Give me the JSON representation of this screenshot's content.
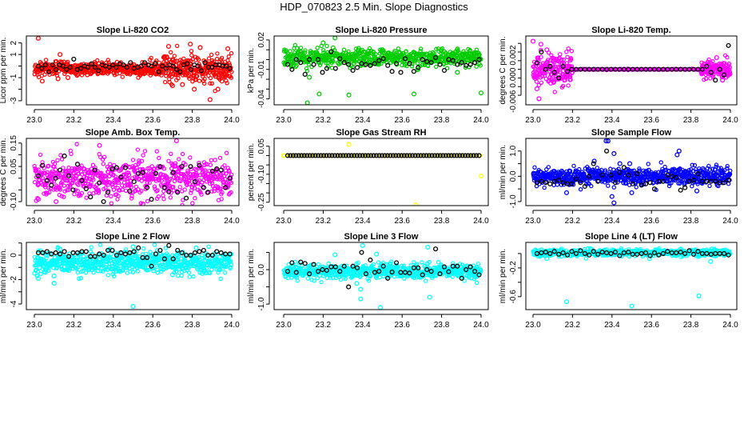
{
  "title": "HDP_070823  2.5 Min. Slope Diagnostics",
  "chart_data": [
    {
      "type": "scatter",
      "title": "Slope Li-820 CO2",
      "ylabel": "Licor ppm per min.",
      "color": "#ff0000",
      "xlim": [
        23.0,
        24.0
      ],
      "xticks": [
        "23.0",
        "23.2",
        "23.4",
        "23.6",
        "23.8",
        "24.0"
      ],
      "ylim": [
        -3.35,
        2.6
      ],
      "yticks": [
        2,
        1,
        0,
        -1,
        -2,
        -3
      ],
      "ytick_labels": [
        "2",
        "1",
        "",
        "-1",
        "",
        "-3"
      ],
      "black_series": [
        0.0,
        -0.2,
        0.1,
        -0.5,
        0.1,
        -0.3,
        0.1,
        0.0,
        -0.3,
        -0.1,
        0.6,
        -0.3,
        -0.2,
        0.0,
        -0.1,
        0.2,
        -0.1,
        -0.4,
        0.1,
        0.0,
        -0.1,
        0.1,
        -0.1,
        0.2,
        0.1,
        -0.1,
        0.3,
        -0.2,
        -0.1,
        0.0,
        0.3,
        0.1,
        0.0,
        0.2,
        -0.5,
        0.0,
        -0.2,
        0.1,
        0.0,
        -0.3,
        -0.5,
        0.1,
        0.2,
        -0.3,
        0.1,
        0.0,
        -0.4,
        0.3,
        -0.1,
        -0.1,
        0.1,
        0.1,
        0.0,
        0.0,
        -0.2
      ],
      "cloud": [
        {
          "from": 23.0,
          "to": 23.65,
          "mean": -0.25,
          "sd": 0.3,
          "n": 420
        },
        {
          "from": 23.65,
          "to": 24.0,
          "mean": -0.3,
          "sd": 0.6,
          "n": 260
        }
      ],
      "outliers": [
        [
          23.02,
          2.4
        ],
        [
          23.04,
          -1.3
        ],
        [
          23.12,
          -1.1
        ],
        [
          23.13,
          1.0
        ],
        [
          23.17,
          -1.0
        ],
        [
          23.68,
          1.7
        ],
        [
          23.79,
          1.9
        ],
        [
          23.84,
          1.6
        ],
        [
          23.89,
          -2.9
        ],
        [
          23.75,
          -1.6
        ],
        [
          23.7,
          -1.7
        ],
        [
          23.98,
          1.5
        ],
        [
          23.95,
          -1.3
        ],
        [
          23.81,
          -2.0
        ],
        [
          23.93,
          -2.0
        ]
      ]
    },
    {
      "type": "scatter",
      "title": "Slope Li-820 Pressure",
      "ylabel": "kPa per min.",
      "color": "#00cc00",
      "xlim": [
        23.0,
        24.0
      ],
      "xticks": [
        "23.0",
        "23.2",
        "23.4",
        "23.6",
        "23.8",
        "24.0"
      ],
      "ylim": [
        -0.046,
        0.024
      ],
      "yticks": [
        0.02,
        0.01,
        0.0,
        -0.01,
        -0.02,
        -0.03,
        -0.04
      ],
      "ytick_labels": [
        "0.02",
        "",
        "",
        "-0.01",
        "",
        "",
        "-0.04"
      ],
      "black_series": [
        -0.005,
        -0.01,
        0.0,
        -0.003,
        -0.015,
        0.0,
        -0.005,
        0.0,
        -0.013,
        -0.009,
        0.008,
        -0.009,
        0.001,
        -0.003,
        -0.005,
        -0.011,
        -0.008,
        -0.004,
        -0.005,
        -0.006,
        -0.004,
        -0.001,
        0.001,
        -0.006,
        -0.012,
        -0.004,
        -0.013,
        0.001,
        -0.004,
        -0.012,
        -0.008,
        0.0,
        -0.002,
        -0.003,
        0.002,
        -0.005,
        -0.011,
        0.0,
        -0.001,
        -0.005,
        -0.003,
        -0.006,
        -0.005,
        -0.003,
        0.0
      ],
      "cloud": [
        {
          "from": 23.0,
          "to": 24.0,
          "mean": 0.002,
          "sd": 0.0045,
          "n": 650
        }
      ],
      "outliers": [
        [
          23.12,
          -0.044
        ],
        [
          23.18,
          -0.035
        ],
        [
          23.33,
          -0.036
        ],
        [
          23.66,
          -0.035
        ],
        [
          24.0,
          -0.034
        ],
        [
          23.26,
          0.022
        ],
        [
          23.2,
          0.017
        ],
        [
          23.25,
          0.012
        ],
        [
          23.13,
          -0.018
        ],
        [
          23.88,
          -0.013
        ]
      ]
    },
    {
      "type": "scatter",
      "title": "Slope Li-820 Temp.",
      "ylabel": "degrees C per min.",
      "color": "#ff00ff",
      "xlim": [
        23.0,
        24.0
      ],
      "xticks": [
        "23.0",
        "23.2",
        "23.4",
        "23.6",
        "23.8",
        "24.0"
      ],
      "ylim": [
        -0.0082,
        0.0077
      ],
      "yticks": [
        0.006,
        0.004,
        0.002,
        0.0,
        -0.002,
        -0.004,
        -0.006
      ],
      "ytick_labels": [
        "",
        "",
        "0.002",
        "0.000",
        "",
        "",
        "-0.006"
      ],
      "black_series": [
        0.0015,
        0.004,
        0.0,
        0.0007,
        -0.0007,
        -0.002,
        0.0007,
        -0.0005,
        0.0,
        0.0,
        0.0,
        0.0,
        0.0,
        0.0,
        0.0,
        0.0,
        0.0,
        0.0,
        0.0,
        0.0,
        0.0,
        0.0,
        0.0,
        0.0,
        0.0,
        0.0,
        0.0,
        0.0,
        0.0,
        0.0,
        0.0,
        0.0,
        0.0,
        0.0,
        0.0,
        0.0,
        0.0,
        0.0,
        0.0,
        0.0007,
        -0.0007,
        -0.0025,
        0.0,
        -0.0013,
        0.0055
      ],
      "cloud": [
        {
          "from": 23.0,
          "to": 23.2,
          "mean": 0.0,
          "sd": 0.0018,
          "n": 180
        },
        {
          "from": 23.2,
          "to": 23.85,
          "mean": 0.0,
          "sd": 5e-05,
          "n": 160
        },
        {
          "from": 23.85,
          "to": 24.0,
          "mean": 0.0,
          "sd": 0.0011,
          "n": 140
        }
      ],
      "outliers": [
        [
          23.0,
          0.0065
        ],
        [
          23.03,
          -0.0068
        ],
        [
          23.02,
          -0.0045
        ],
        [
          23.04,
          0.0058
        ],
        [
          23.07,
          0.0045
        ],
        [
          23.09,
          -0.0032
        ],
        [
          23.93,
          0.0027
        ],
        [
          23.96,
          -0.0025
        ]
      ]
    },
    {
      "type": "scatter",
      "title": "Slope Amb. Box Temp.",
      "ylabel": "degrees C per min.",
      "color": "#ff00ff",
      "xlim": [
        23.0,
        24.0
      ],
      "xticks": [
        "23.0",
        "23.2",
        "23.4",
        "23.6",
        "23.8",
        "24.0"
      ],
      "ylim": [
        -0.117,
        0.17
      ],
      "yticks": [
        0.15,
        0.1,
        0.05,
        0.0,
        -0.05,
        -0.1
      ],
      "ytick_labels": [
        "0.15",
        "",
        "0.05",
        "",
        "",
        "-0.10"
      ],
      "black_series": [
        0.01,
        0.055,
        -0.01,
        -0.03,
        0.0,
        0.035,
        0.095,
        0.01,
        -0.05,
        0.06,
        -0.01,
        -0.045,
        -0.08,
        0.035,
        -0.02,
        -0.1,
        -0.06,
        0.04,
        0.045,
        0.005,
        0.045,
        -0.055,
        -0.015,
        0.02,
        0.025,
        -0.04,
        -0.09,
        0.02,
        0.05,
        -0.04,
        -0.058,
        0.025,
        -0.06,
        0.05,
        -0.085,
        0.05,
        -0.015,
        0.055,
        -0.04,
        -0.06,
        0.03,
        0.04,
        0.035,
        -0.04,
        0.0
      ],
      "cloud": [
        {
          "from": 23.0,
          "to": 24.0,
          "mean": 0.0,
          "sd": 0.042,
          "n": 650
        }
      ],
      "outliers": [
        [
          23.33,
          0.14
        ],
        [
          23.72,
          0.16
        ],
        [
          23.55,
          -0.11
        ],
        [
          23.02,
          -0.09
        ],
        [
          23.11,
          -0.1
        ]
      ]
    },
    {
      "type": "scatter",
      "title": "Slope Gas Stream RH",
      "ylabel": "percent per min.",
      "color": "#ffff00",
      "xlim": [
        23.0,
        24.0
      ],
      "xticks": [
        "23.0",
        "23.2",
        "23.4",
        "23.6",
        "23.8",
        "24.0"
      ],
      "ylim": [
        -0.268,
        0.092
      ],
      "yticks": [
        0.05,
        0.0,
        -0.05,
        -0.1,
        -0.15,
        -0.2,
        -0.25
      ],
      "ytick_labels": [
        "0.05",
        "",
        "",
        "-0.10",
        "",
        "",
        "-0.25"
      ],
      "black_series": [
        0,
        0,
        0,
        0,
        0,
        0,
        0,
        0,
        0,
        0,
        0,
        0,
        0,
        0,
        0,
        0,
        0,
        0,
        0,
        0,
        0,
        0,
        0,
        0,
        0,
        0,
        0,
        0,
        0,
        0,
        0,
        0,
        0,
        0,
        0,
        0,
        0,
        0,
        0,
        0,
        0,
        0,
        0,
        0,
        0,
        0,
        0,
        0,
        0,
        0,
        0,
        0,
        0,
        0,
        0,
        0,
        0,
        0,
        0,
        0,
        0,
        0,
        0,
        0,
        0,
        0,
        0,
        0,
        0,
        0
      ],
      "cloud": [
        {
          "from": 23.0,
          "to": 24.0,
          "mean": 0.0,
          "sd": 0.0,
          "n": 90
        }
      ],
      "outliers": [
        [
          23.0,
          0.0
        ],
        [
          23.33,
          0.06
        ],
        [
          23.67,
          -0.265
        ],
        [
          24.0,
          -0.11
        ]
      ]
    },
    {
      "type": "scatter",
      "title": "Slope Sample Flow",
      "ylabel": "ml/min per min.",
      "color": "#0000ff",
      "xlim": [
        23.0,
        24.0
      ],
      "xticks": [
        "23.0",
        "23.2",
        "23.4",
        "23.6",
        "23.8",
        "24.0"
      ],
      "ylim": [
        -1.16,
        1.5
      ],
      "yticks": [
        1.0,
        0.5,
        0.0,
        -0.5,
        -1.0
      ],
      "ytick_labels": [
        "1.0",
        "",
        "0.0",
        "",
        "-1.0"
      ],
      "black_series": [
        -0.25,
        -0.2,
        -0.25,
        -0.3,
        -0.2,
        -0.15,
        -0.25,
        -0.3,
        -0.3,
        -0.1,
        -0.25,
        -0.4,
        0.0,
        0.5,
        -0.2,
        0.05,
        1.0,
        0.05,
        -0.25,
        0.15,
        0.35,
        0.05,
        -0.3,
        0.1,
        -0.35,
        -0.3,
        -0.25,
        -0.5,
        -0.2,
        -0.2,
        0.05,
        0.0,
        -0.05,
        -0.55,
        -0.45,
        -0.2,
        -0.15,
        0.1,
        -0.2,
        -0.2,
        -0.2,
        -0.2,
        -0.25,
        -0.25,
        -0.15
      ],
      "cloud": [
        {
          "from": 23.0,
          "to": 24.0,
          "mean": 0.0,
          "sd": 0.17,
          "n": 700
        }
      ],
      "outliers": [
        [
          23.37,
          1.4
        ],
        [
          23.38,
          1.4
        ],
        [
          23.41,
          0.9
        ],
        [
          23.74,
          1.0
        ],
        [
          23.73,
          0.85
        ],
        [
          23.17,
          -0.65
        ],
        [
          23.41,
          -1.05
        ],
        [
          23.4,
          -0.8
        ],
        [
          23.83,
          -0.58
        ],
        [
          23.5,
          -0.65
        ],
        [
          23.31,
          0.6
        ],
        [
          23.44,
          0.5
        ],
        [
          23.49,
          0.5
        ]
      ]
    },
    {
      "type": "scatter",
      "title": "Slope Line 2 Flow",
      "ylabel": "ml/min per min.",
      "color": "#00ffff",
      "xlim": [
        23.0,
        24.0
      ],
      "xticks": [
        "23.0",
        "23.2",
        "23.4",
        "23.6",
        "23.8",
        "24.0"
      ],
      "ylim": [
        -4.46,
        1.05
      ],
      "yticks": [
        1,
        0,
        -1,
        -2,
        -3,
        -4
      ],
      "ytick_labels": [
        "",
        "0",
        "",
        "-2",
        "",
        "-4"
      ],
      "black_series": [
        0.2,
        0.2,
        0.3,
        0.1,
        0.2,
        0.1,
        0.3,
        -0.1,
        0.2,
        0.2,
        0.3,
        0.3,
        -0.1,
        -0.1,
        0.1,
        0.0,
        0.4,
        0.4,
        0.0,
        0.2,
        0.1,
        0.2,
        0.3,
        0.6,
        -0.2,
        -0.2,
        -0.9,
        0.1,
        0.4,
        -0.3,
        0.8,
        -0.3,
        0.4,
        0.2,
        0.0,
        0.0,
        0.2,
        0.3,
        0.4,
        0.0,
        0.0,
        0.3,
        0.2,
        0.1,
        0.1
      ],
      "cloud": [
        {
          "from": 23.0,
          "to": 24.0,
          "mean": -0.6,
          "sd": 0.45,
          "n": 700
        }
      ],
      "outliers": [
        [
          23.02,
          -1.9
        ],
        [
          23.1,
          -2.3
        ],
        [
          23.1,
          -1.7
        ],
        [
          23.5,
          -4.2
        ],
        [
          23.5,
          0.7
        ],
        [
          23.82,
          0.6
        ],
        [
          23.13,
          0.5
        ],
        [
          23.85,
          -1.5
        ],
        [
          23.7,
          -1.6
        ]
      ]
    },
    {
      "type": "scatter",
      "title": "Slope Line 3 Flow",
      "ylabel": "ml/min per min.",
      "color": "#00ffff",
      "xlim": [
        23.0,
        24.0
      ],
      "xticks": [
        "23.0",
        "23.2",
        "23.4",
        "23.6",
        "23.8",
        "24.0"
      ],
      "ylim": [
        -1.16,
        0.79
      ],
      "yticks": [
        0.5,
        0.0,
        -0.5,
        -1.0
      ],
      "ytick_labels": [
        "",
        "0.0",
        "",
        "-1.0"
      ],
      "black_series": [
        -0.05,
        0.2,
        -0.08,
        0.22,
        0.18,
        -0.12,
        0.15,
        -0.05,
        0.0,
        -0.02,
        0.08,
        0.08,
        -0.05,
        0.1,
        -0.5,
        0.1,
        0.05,
        0.5,
        -0.12,
        0.28,
        -0.08,
        -0.05,
        0.1,
        -0.25,
        -0.07,
        0.2,
        -0.08,
        -0.08,
        -0.1,
        0.05,
        0.05,
        -0.15,
        0.0,
        -0.05,
        0.6,
        -0.12,
        0.08,
        -0.06,
        0.1,
        0.1,
        -0.25,
        0.0,
        0.08,
        -0.05,
        -0.15
      ],
      "cloud": [
        {
          "from": 23.0,
          "to": 24.0,
          "mean": -0.05,
          "sd": 0.11,
          "n": 680
        }
      ],
      "outliers": [
        [
          23.4,
          0.7
        ],
        [
          23.39,
          -0.85
        ],
        [
          23.49,
          -1.1
        ],
        [
          23.74,
          -0.8
        ],
        [
          23.39,
          -0.57
        ],
        [
          23.73,
          0.65
        ],
        [
          23.37,
          -0.4
        ],
        [
          23.26,
          0.43
        ],
        [
          23.47,
          0.45
        ]
      ]
    },
    {
      "type": "scatter",
      "title": "Slope Line 4 (LT) Flow",
      "ylabel": "ml/min per min.",
      "color": "#00ffff",
      "xlim": [
        23.0,
        24.0
      ],
      "xticks": [
        "23.0",
        "23.2",
        "23.4",
        "23.6",
        "23.8",
        "24.0"
      ],
      "ylim": [
        -0.78,
        0.155
      ],
      "yticks": [
        0.0,
        -0.2,
        -0.4,
        -0.6
      ],
      "ytick_labels": [
        "",
        "-0.2",
        "",
        "-0.6"
      ],
      "black_series": [
        0.0,
        0.01,
        0.02,
        0.0,
        0.03,
        -0.01,
        0.01,
        -0.02,
        0.03,
        0.0,
        0.04,
        0.0,
        -0.02,
        0.03,
        -0.01,
        0.02,
        0.01,
        0.0,
        0.02,
        -0.03,
        0.01,
        0.02,
        -0.01,
        -0.01,
        0.0,
        0.01,
        -0.03,
        0.01,
        -0.02,
        0.0,
        0.03,
        0.01,
        0.01,
        0.02,
        0.0,
        0.04,
        -0.01,
        0.03,
        0.0,
        0.0,
        -0.01,
        0.0,
        0.0,
        0.0,
        -0.02
      ],
      "cloud": [
        {
          "from": 23.0,
          "to": 24.0,
          "mean": 0.01,
          "sd": 0.022,
          "n": 650
        }
      ],
      "outliers": [
        [
          23.17,
          -0.67
        ],
        [
          23.5,
          -0.73
        ],
        [
          23.84,
          -0.59
        ],
        [
          23.9,
          -0.11
        ],
        [
          23.29,
          0.07
        ],
        [
          23.07,
          -0.07
        ],
        [
          23.59,
          -0.07
        ]
      ]
    }
  ]
}
